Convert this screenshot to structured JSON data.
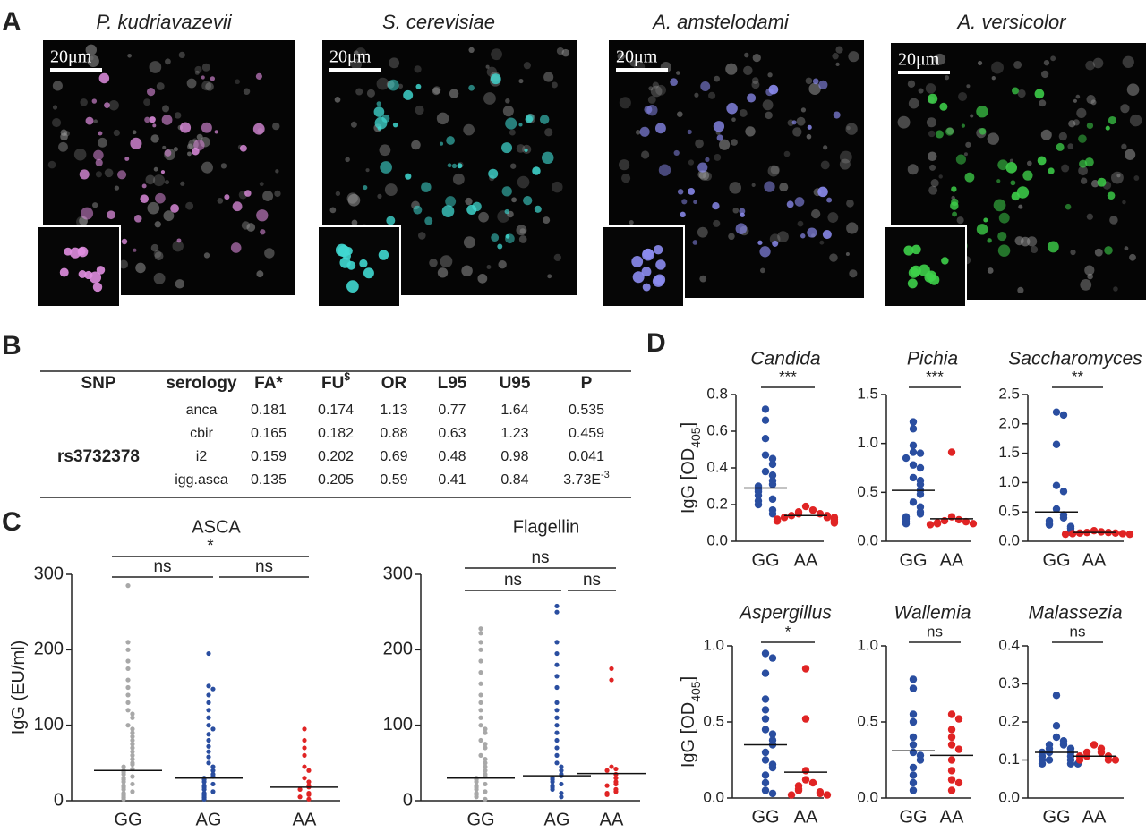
{
  "panel_labels": [
    "A",
    "B",
    "C",
    "D"
  ],
  "images": [
    {
      "title": "P. kudriavazevii",
      "scale": "20μm",
      "color": "#e08ee0"
    },
    {
      "title": "S. cerevisiae",
      "scale": "20μm",
      "color": "#40d8d0"
    },
    {
      "title": "A. amstelodami",
      "scale": "20μm",
      "color": "#8c8cf0"
    },
    {
      "title": "A. versicolor",
      "scale": "20μm",
      "color": "#3ed04a"
    }
  ],
  "table": {
    "header": [
      "SNP",
      "serology",
      "FA*",
      {
        "text": "FU",
        "sup": "$"
      },
      "OR",
      "L95",
      "U95",
      "P"
    ],
    "snp": "rs3732378",
    "rows": [
      [
        "anca",
        0.181,
        0.174,
        1.13,
        0.77,
        1.64,
        0.535
      ],
      [
        "cbir",
        0.165,
        0.182,
        0.88,
        0.63,
        1.23,
        0.459
      ],
      [
        "i2",
        0.159,
        0.202,
        0.69,
        0.48,
        0.98,
        0.041
      ],
      [
        "igg.asca",
        0.135,
        0.205,
        0.59,
        0.41,
        0.84,
        {
          "text": "3.73E",
          "sup": "-3"
        }
      ]
    ]
  },
  "chart_data": [
    {
      "type": "strip",
      "title": "ASCA",
      "ylabel": [
        "IgG (EU/ml)"
      ],
      "categories": [
        "GG",
        "AG",
        "AA"
      ],
      "colors": [
        "#a8a8a8",
        "#2a4ea0",
        "#e02424"
      ],
      "values": [
        [
          285,
          210,
          200,
          185,
          175,
          160,
          150,
          140,
          130,
          120,
          115,
          110,
          100,
          95,
          90,
          85,
          80,
          75,
          70,
          65,
          60,
          55,
          50,
          48,
          45,
          42,
          40,
          38,
          35,
          32,
          30,
          28,
          25,
          22,
          20,
          18,
          15,
          12,
          10,
          8,
          6,
          4,
          2
        ],
        [
          195,
          152,
          148,
          140,
          130,
          120,
          110,
          100,
          95,
          88,
          80,
          72,
          65,
          58,
          50,
          45,
          40,
          35,
          32,
          30,
          28,
          25,
          22,
          20,
          18,
          15,
          12,
          10,
          8,
          6,
          4,
          2
        ],
        [
          95,
          80,
          70,
          60,
          45,
          40,
          30,
          25,
          20,
          18,
          15,
          10,
          8,
          5,
          2
        ]
      ],
      "medians": [
        40,
        30,
        18
      ],
      "ylim": [
        0,
        300
      ],
      "yticks": [
        0,
        100,
        200,
        300
      ],
      "comparisons": [
        {
          "label": "*",
          "between": [
            "GG",
            "AA"
          ]
        },
        {
          "label": "ns",
          "between": [
            "GG",
            "AG"
          ]
        },
        {
          "label": "ns",
          "between": [
            "AG",
            "AA"
          ]
        }
      ]
    },
    {
      "type": "strip",
      "title": "Flagellin",
      "categories": [
        "GG",
        "AG",
        "AA"
      ],
      "colors": [
        "#a8a8a8",
        "#2a4ea0",
        "#e02424"
      ],
      "values": [
        [
          228,
          222,
          210,
          200,
          185,
          170,
          155,
          140,
          130,
          120,
          110,
          100,
          95,
          90,
          80,
          75,
          70,
          60,
          55,
          50,
          45,
          40,
          35,
          32,
          30,
          28,
          25,
          22,
          20,
          18,
          15,
          12,
          10,
          8,
          5,
          2
        ],
        [
          258,
          250,
          210,
          195,
          180,
          165,
          150,
          130,
          120,
          110,
          100,
          90,
          80,
          70,
          60,
          50,
          45,
          40,
          35,
          33,
          30,
          28,
          25,
          22,
          20,
          18,
          15,
          10,
          5
        ],
        [
          175,
          160,
          45,
          42,
          40,
          35,
          30,
          25,
          22,
          20,
          15,
          12,
          10,
          8
        ]
      ],
      "medians": [
        30,
        33,
        36
      ],
      "ylim": [
        0,
        300
      ],
      "yticks": [
        0,
        100,
        200,
        300
      ],
      "comparisons": [
        {
          "label": "ns",
          "between": [
            "GG",
            "AA"
          ]
        },
        {
          "label": "ns",
          "between": [
            "GG",
            "AG"
          ]
        },
        {
          "label": "ns",
          "between": [
            "AG",
            "AA"
          ]
        }
      ]
    },
    {
      "type": "strip",
      "title": "Candida",
      "ylabel": [
        "IgG [OD",
        "405",
        "]"
      ],
      "categories": [
        "GG",
        "AA"
      ],
      "colors": [
        "#2a4ea0",
        "#e02424"
      ],
      "values": [
        [
          0.72,
          0.66,
          0.56,
          0.47,
          0.45,
          0.42,
          0.38,
          0.36,
          0.33,
          0.31,
          0.3,
          0.28,
          0.27,
          0.25,
          0.23,
          0.22,
          0.2,
          0.17,
          0.15
        ],
        [
          0.19,
          0.17,
          0.16,
          0.15,
          0.15,
          0.14,
          0.14,
          0.13,
          0.13,
          0.13,
          0.12,
          0.12,
          0.11,
          0.11,
          0.1
        ]
      ],
      "medians": [
        0.29,
        0.14
      ],
      "ylim": [
        0,
        0.8
      ],
      "yticks": [
        {
          "value": 0,
          "label": "0.0"
        },
        0.2,
        0.4,
        0.6,
        0.8
      ],
      "comparisons": [
        {
          "label": "***",
          "between": [
            "GG",
            "AA"
          ]
        }
      ]
    },
    {
      "type": "strip",
      "title": "Pichia",
      "categories": [
        "GG",
        "AA"
      ],
      "colors": [
        "#2a4ea0",
        "#e02424"
      ],
      "values": [
        [
          1.22,
          1.15,
          0.98,
          0.91,
          0.9,
          0.85,
          0.78,
          0.75,
          0.65,
          0.62,
          0.58,
          0.52,
          0.48,
          0.4,
          0.35,
          0.3,
          0.28,
          0.25,
          0.23,
          0.2,
          0.18
        ],
        [
          0.91,
          0.25,
          0.22,
          0.21,
          0.2,
          0.19,
          0.18,
          0.18,
          0.17
        ]
      ],
      "medians": [
        0.52,
        0.23
      ],
      "ylim": [
        0,
        1.5
      ],
      "yticks": [
        {
          "value": 0,
          "label": "0.0"
        },
        0.5,
        {
          "value": 1,
          "label": "1.0"
        },
        1.5
      ],
      "comparisons": [
        {
          "label": "***",
          "between": [
            "GG",
            "AA"
          ]
        }
      ]
    },
    {
      "type": "strip",
      "title": "Saccharomyces",
      "categories": [
        "GG",
        "AA"
      ],
      "colors": [
        "#2a4ea0",
        "#e02424"
      ],
      "values": [
        [
          2.2,
          2.15,
          1.65,
          0.95,
          0.85,
          0.55,
          0.45,
          0.4,
          0.35,
          0.3,
          0.28,
          0.25,
          0.22,
          0.18,
          0.15
        ],
        [
          0.18,
          0.16,
          0.15,
          0.15,
          0.14,
          0.14,
          0.13,
          0.13,
          0.12,
          0.12
        ]
      ],
      "medians": [
        0.5,
        0.15
      ],
      "ylim": [
        0,
        2.5
      ],
      "yticks": [
        {
          "value": 0,
          "label": "0.0"
        },
        0.5,
        {
          "value": 1,
          "label": "1.0"
        },
        1.5,
        {
          "value": 2,
          "label": "2.0"
        },
        2.5
      ],
      "comparisons": [
        {
          "label": "**",
          "between": [
            "GG",
            "AA"
          ]
        }
      ]
    },
    {
      "type": "strip",
      "title": "Aspergillus",
      "ylabel": [
        "IgG [OD",
        "405",
        "]"
      ],
      "categories": [
        "GG",
        "AA"
      ],
      "colors": [
        "#2a4ea0",
        "#e02424"
      ],
      "values": [
        [
          0.95,
          0.92,
          0.82,
          0.65,
          0.58,
          0.52,
          0.45,
          0.42,
          0.38,
          0.35,
          0.3,
          0.25,
          0.22,
          0.2,
          0.15,
          0.1,
          0.05,
          0.03
        ],
        [
          0.85,
          0.52,
          0.18,
          0.12,
          0.1,
          0.08,
          0.06,
          0.05,
          0.04,
          0.03,
          0.02,
          0.02
        ]
      ],
      "medians": [
        0.35,
        0.17
      ],
      "ylim": [
        0,
        1
      ],
      "yticks": [
        {
          "value": 0,
          "label": "0.0"
        },
        0.5,
        {
          "value": 1,
          "label": "1.0"
        }
      ],
      "comparisons": [
        {
          "label": "*",
          "between": [
            "GG",
            "AA"
          ]
        }
      ]
    },
    {
      "type": "strip",
      "title": "Wallemia",
      "categories": [
        "GG",
        "AA"
      ],
      "colors": [
        "#2a4ea0",
        "#e02424"
      ],
      "values": [
        [
          0.78,
          0.72,
          0.55,
          0.5,
          0.4,
          0.35,
          0.3,
          0.28,
          0.25,
          0.2,
          0.15,
          0.1,
          0.05
        ],
        [
          0.55,
          0.52,
          0.45,
          0.4,
          0.35,
          0.32,
          0.25,
          0.18,
          0.12,
          0.1,
          0.05
        ]
      ],
      "medians": [
        0.31,
        0.28
      ],
      "ylim": [
        0,
        1
      ],
      "yticks": [
        {
          "value": 0,
          "label": "0.0"
        },
        0.5,
        {
          "value": 1,
          "label": "1.0"
        }
      ],
      "comparisons": [
        {
          "label": "ns",
          "between": [
            "GG",
            "AA"
          ]
        }
      ]
    },
    {
      "type": "strip",
      "title": "Malassezia",
      "categories": [
        "GG",
        "AA"
      ],
      "colors": [
        "#2a4ea0",
        "#e02424"
      ],
      "values": [
        [
          0.27,
          0.19,
          0.16,
          0.15,
          0.14,
          0.14,
          0.13,
          0.13,
          0.12,
          0.12,
          0.12,
          0.11,
          0.11,
          0.1,
          0.1,
          0.1,
          0.09,
          0.09,
          0.09
        ],
        [
          0.14,
          0.13,
          0.12,
          0.12,
          0.11,
          0.11,
          0.11,
          0.1,
          0.1,
          0.1
        ]
      ],
      "medians": [
        0.12,
        0.11
      ],
      "ylim": [
        0,
        0.4
      ],
      "yticks": [
        {
          "value": 0,
          "label": "0.0"
        },
        0.1,
        0.2,
        0.3,
        0.4
      ],
      "comparisons": [
        {
          "label": "ns",
          "between": [
            "GG",
            "AA"
          ]
        }
      ]
    }
  ]
}
